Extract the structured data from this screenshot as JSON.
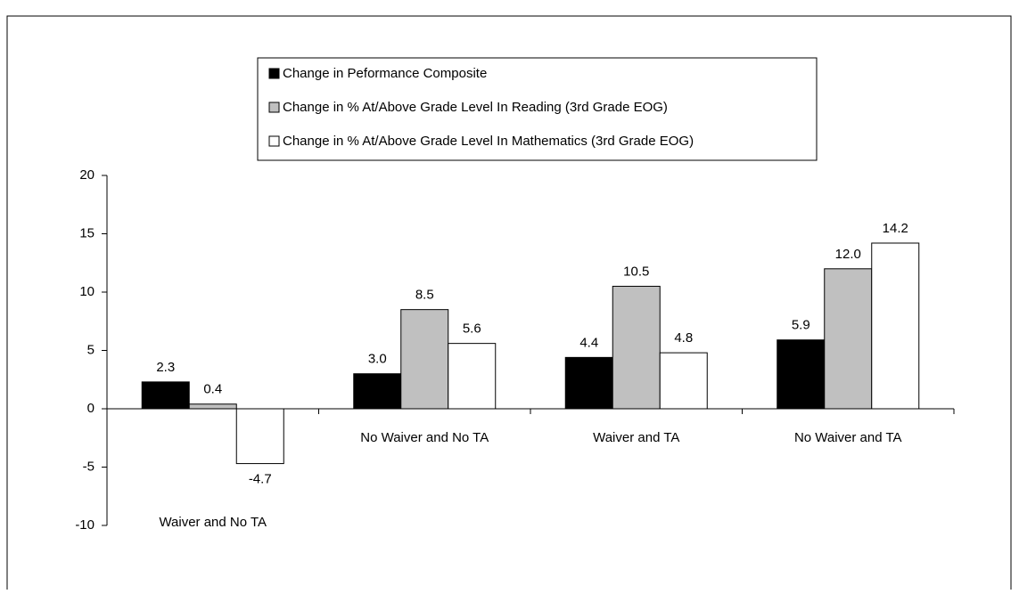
{
  "chart_data": {
    "type": "bar",
    "categories": [
      "Waiver and No TA",
      "No Waiver and No TA",
      "Waiver and TA",
      "No Waiver and TA"
    ],
    "series": [
      {
        "name": "Change in Peformance Composite",
        "color": "#000000",
        "values": [
          2.3,
          3.0,
          4.4,
          5.9
        ],
        "value_labels": [
          "2.3",
          "3.0",
          "4.4",
          "5.9"
        ]
      },
      {
        "name": "Change in % At/Above Grade Level In Reading (3rd Grade EOG)",
        "color": "#c0c0c0",
        "values": [
          0.4,
          8.5,
          10.5,
          12.0
        ],
        "value_labels": [
          "0.4",
          "8.5",
          "10.5",
          "12.0"
        ]
      },
      {
        "name": "Change in % At/Above Grade Level In Mathematics (3rd Grade EOG)",
        "color": "#ffffff",
        "values": [
          -4.7,
          5.6,
          4.8,
          14.2
        ],
        "value_labels": [
          "-4.7",
          "5.6",
          "4.8",
          "14.2"
        ]
      }
    ],
    "ylim": [
      -10,
      20
    ],
    "yticks": [
      -10,
      -5,
      0,
      5,
      10,
      15,
      20
    ],
    "grid": false,
    "legend": "top"
  }
}
